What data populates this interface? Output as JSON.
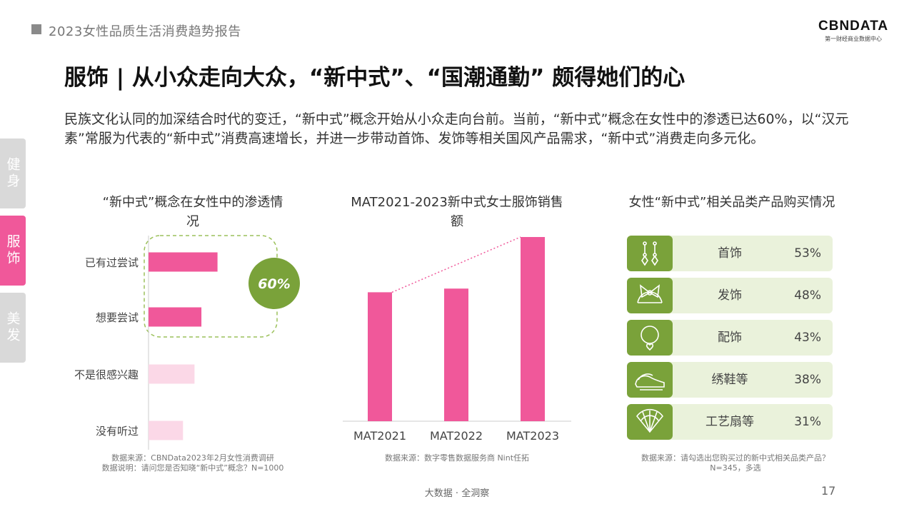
{
  "header": {
    "report_title": "2023女性品质生活消费趋势报告",
    "logo_main": "CBNDATA",
    "logo_sub": "第一财经商业数据中心"
  },
  "headline": "服饰 | 从小众走向大众，“新中式”、“国潮通勤” 颇得她们的心",
  "intro": "民族文化认同的加深结合时代的变迁，“新中式”概念开始从小众走向台前。当前，“新中式”概念在女性中的渗透已达60%，以“汉元素”常服为代表的“新中式”消费高速增长，并进一步带动首饰、发饰等相关国风产品需求，“新中式”消费走向多元化。",
  "side_tabs": {
    "health": "健身",
    "clothing": "服饰",
    "beauty": "美发"
  },
  "colors": {
    "pink": "#f0589a",
    "pale_pink": "#fbd8e7",
    "green": "#7aa23a",
    "pale_green": "#eaf2db"
  },
  "chart_data": [
    {
      "type": "bar",
      "orientation": "horizontal",
      "title": "“新中式”概念在女性中的渗透情况",
      "categories": [
        "已有过尝试",
        "想要尝试",
        "不是很感兴趣",
        "没有听过"
      ],
      "values": [
        30,
        23,
        20,
        15
      ],
      "highlight": "60%",
      "source": "数据来源：CBNData2023年2月女性消费调研",
      "note": "数据说明：请问您是否知晓“新中式”概念？N=1000"
    },
    {
      "type": "bar",
      "title": "MAT2021-2023新中式女士服饰销售额",
      "categories": [
        "MAT2021",
        "MAT2022",
        "MAT2023"
      ],
      "values": [
        70,
        72,
        100
      ],
      "source": "数据来源：数字零售数据服务商 Nint任拓"
    },
    {
      "type": "table",
      "title": "女性“新中式”相关品类产品购买情况",
      "categories": [
        "首饰",
        "发饰",
        "配饰",
        "绣鞋等",
        "工艺扇等"
      ],
      "values": [
        "53%",
        "48%",
        "43%",
        "38%",
        "31%"
      ],
      "icons": [
        "earrings-icon",
        "hair-bow-icon",
        "necklace-icon",
        "embroidered-shoes-icon",
        "folding-fan-icon"
      ],
      "source": "数据来源：请勾选出您购买过的新中式相关品类产品？",
      "note": "N=345，多选"
    }
  ],
  "footer": {
    "center": "大数据 · 全洞察",
    "page": "17"
  }
}
